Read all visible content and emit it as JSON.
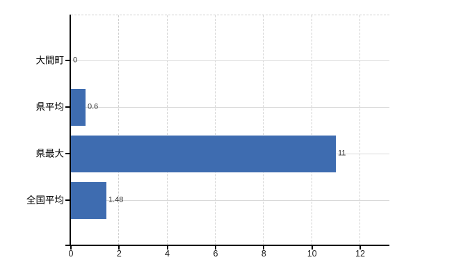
{
  "chart_data": {
    "type": "bar",
    "orientation": "horizontal",
    "title": "",
    "categories": [
      "大間町",
      "県平均",
      "県最大",
      "全国平均"
    ],
    "values": [
      0,
      0.6,
      11,
      1.48
    ],
    "value_labels": [
      "0",
      "0.6",
      "11",
      "1.48"
    ],
    "x_tick_values": [
      0,
      2,
      4,
      6,
      8,
      10,
      12
    ],
    "x_tick_labels": [
      "0",
      "2",
      "4",
      "6",
      "8",
      "10",
      "12"
    ],
    "xlim": [
      0,
      13.2
    ],
    "grid": true,
    "legend": "none",
    "colors": {
      "bar": "#3e6cb0",
      "axis": "#000000",
      "horizontal_gridline": "#d9d9d9",
      "vertical_gridline": "#cfcfcf",
      "value_label": "#333333",
      "tick_label": "#1a1a1a",
      "background": "#ffffff"
    }
  }
}
